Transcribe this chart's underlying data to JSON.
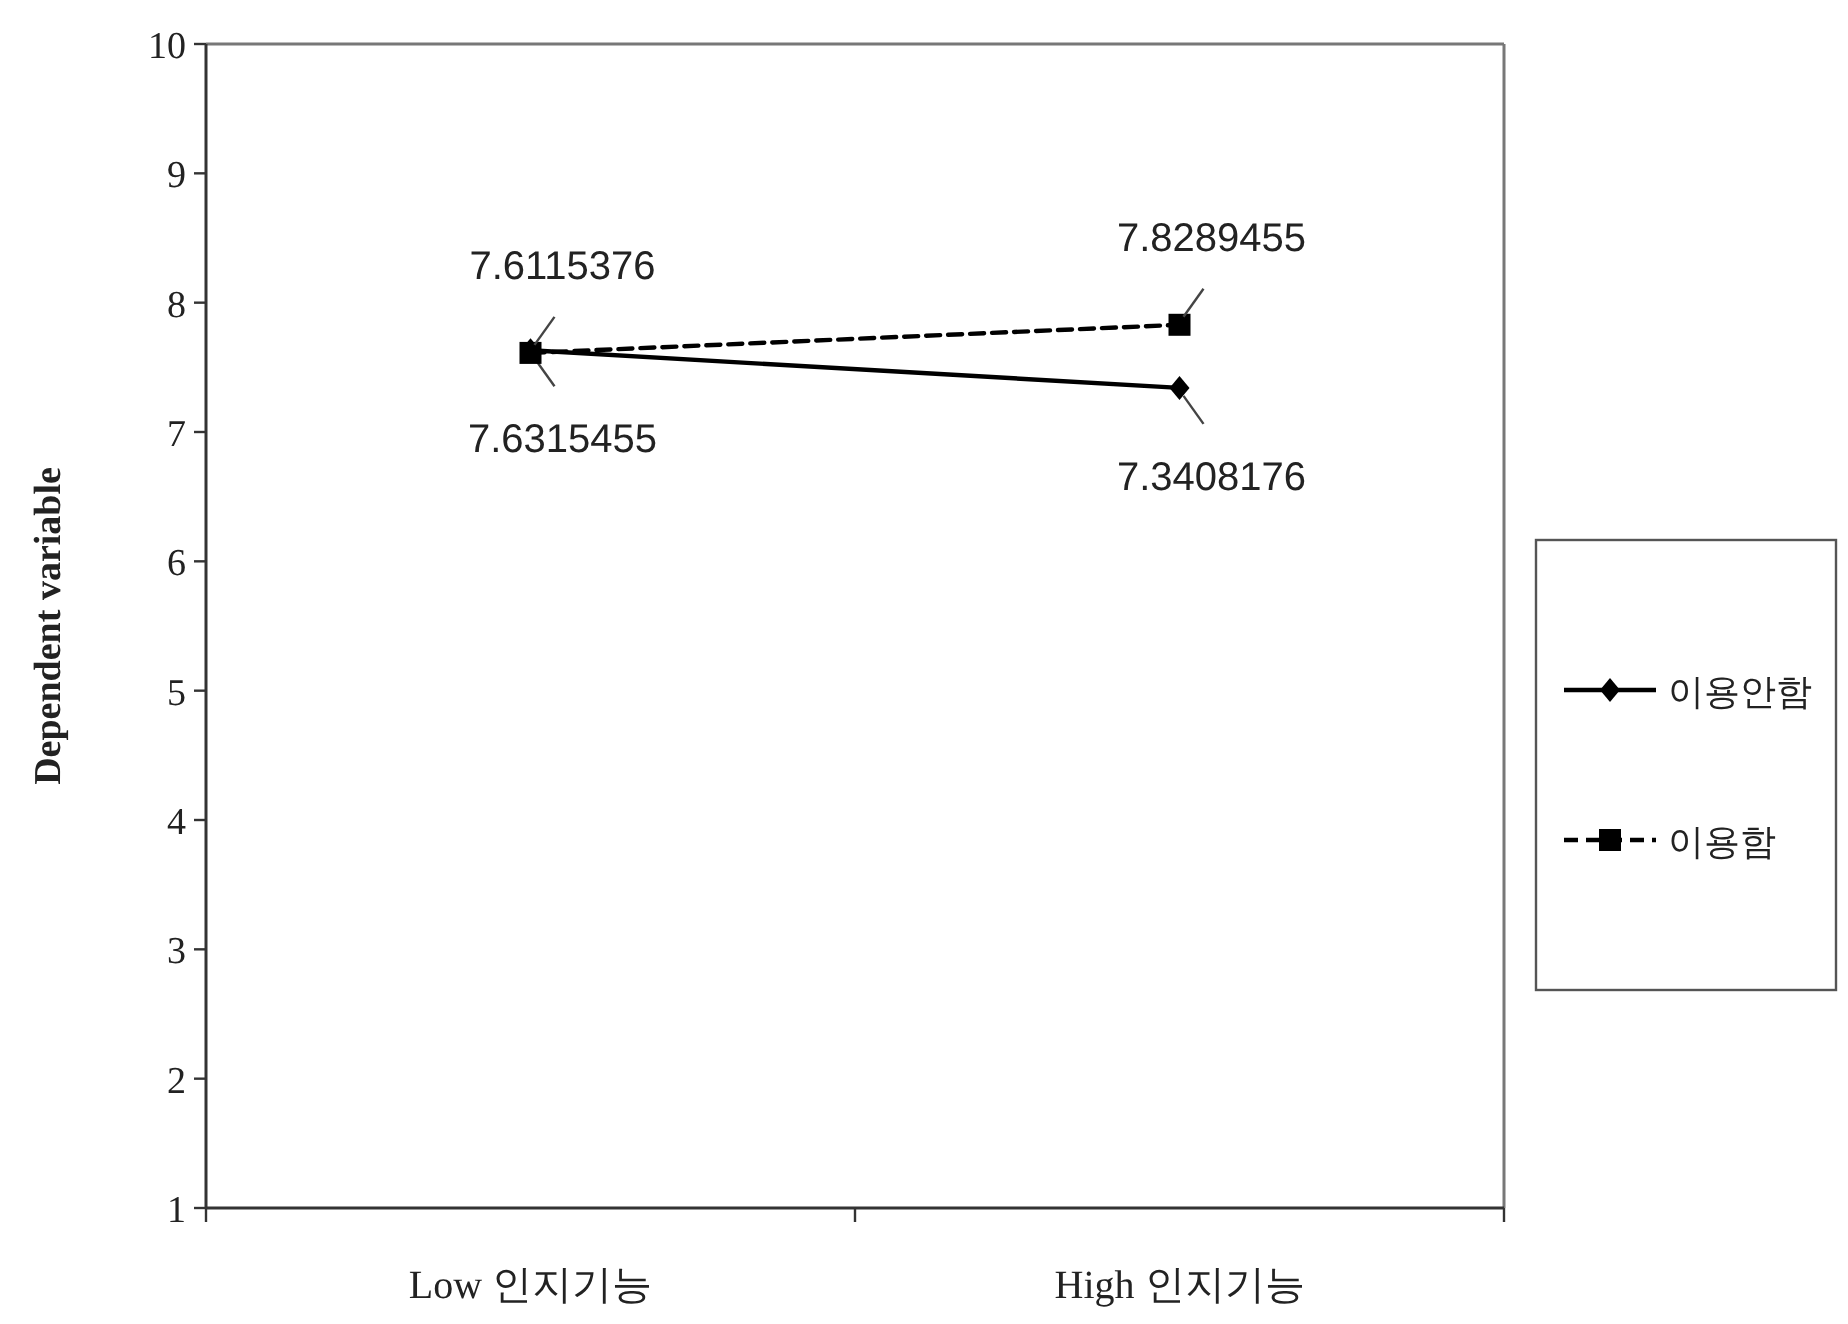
{
  "chart_data": {
    "type": "line",
    "categories": [
      "Low 인지기능",
      "High 인지기능"
    ],
    "ylabel": "Dependent variable",
    "ylim": [
      1,
      10
    ],
    "yticks": [
      1,
      2,
      3,
      4,
      5,
      6,
      7,
      8,
      9,
      10
    ],
    "data_labels": true,
    "legend": "right",
    "series": [
      {
        "name": "이용안함",
        "color": "#000000",
        "values": [
          7.6315455,
          7.3408176
        ],
        "marker": "diamond",
        "line_style": "solid"
      },
      {
        "name": "이용함",
        "color": "#000000",
        "values": [
          7.6115376,
          7.8289455
        ],
        "marker": "square",
        "line_style": "dashed"
      }
    ]
  }
}
